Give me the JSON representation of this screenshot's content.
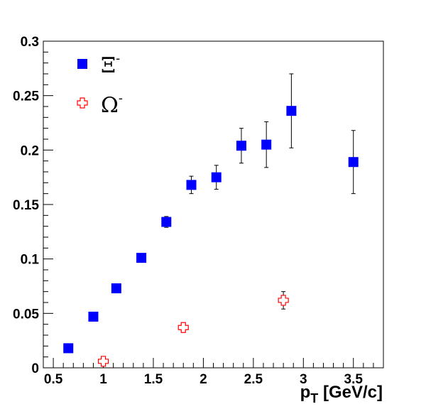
{
  "chart_data": {
    "type": "scatter",
    "title": "",
    "xlabel": {
      "main": "p",
      "sub": "T",
      "rest": " [GeV/c]"
    },
    "ylabel": "",
    "xlim": [
      0.4,
      3.8
    ],
    "ylim": [
      0,
      0.3
    ],
    "x_ticks": [
      0.5,
      1,
      1.5,
      2,
      2.5,
      3,
      3.5
    ],
    "x_tick_labels": [
      "0.5",
      "1",
      "1.5",
      "2",
      "2.5",
      "3",
      "3.5"
    ],
    "y_ticks": [
      0,
      0.05,
      0.1,
      0.15,
      0.2,
      0.25,
      0.3
    ],
    "y_tick_labels": [
      "0",
      "0.05",
      "0.1",
      "0.15",
      "0.2",
      "0.25",
      "0.3"
    ],
    "grid": false,
    "legend_position": "top-left",
    "series": [
      {
        "name": "Ξ",
        "name_sup": "-",
        "marker": "filled-square",
        "color": "#0000ff",
        "points": [
          {
            "x": 0.65,
            "y": 0.018,
            "err": 0.0
          },
          {
            "x": 0.9,
            "y": 0.047,
            "err": 0.0
          },
          {
            "x": 1.13,
            "y": 0.073,
            "err": 0.0
          },
          {
            "x": 1.38,
            "y": 0.101,
            "err": 0.0
          },
          {
            "x": 1.63,
            "y": 0.134,
            "err": 0.005
          },
          {
            "x": 1.88,
            "y": 0.168,
            "err": 0.008
          },
          {
            "x": 2.13,
            "y": 0.175,
            "err": 0.011
          },
          {
            "x": 2.38,
            "y": 0.204,
            "err": 0.016
          },
          {
            "x": 2.63,
            "y": 0.205,
            "err": 0.021
          },
          {
            "x": 2.88,
            "y": 0.236,
            "err": 0.034
          },
          {
            "x": 3.5,
            "y": 0.189,
            "err": 0.029
          }
        ]
      },
      {
        "name": "Ω",
        "name_sup": "-",
        "marker": "open-cross",
        "color": "#ff0000",
        "points": [
          {
            "x": 1.0,
            "y": 0.006,
            "err": 0.0
          },
          {
            "x": 1.8,
            "y": 0.037,
            "err": 0.0
          },
          {
            "x": 2.8,
            "y": 0.062,
            "err": 0.008
          }
        ]
      }
    ]
  }
}
